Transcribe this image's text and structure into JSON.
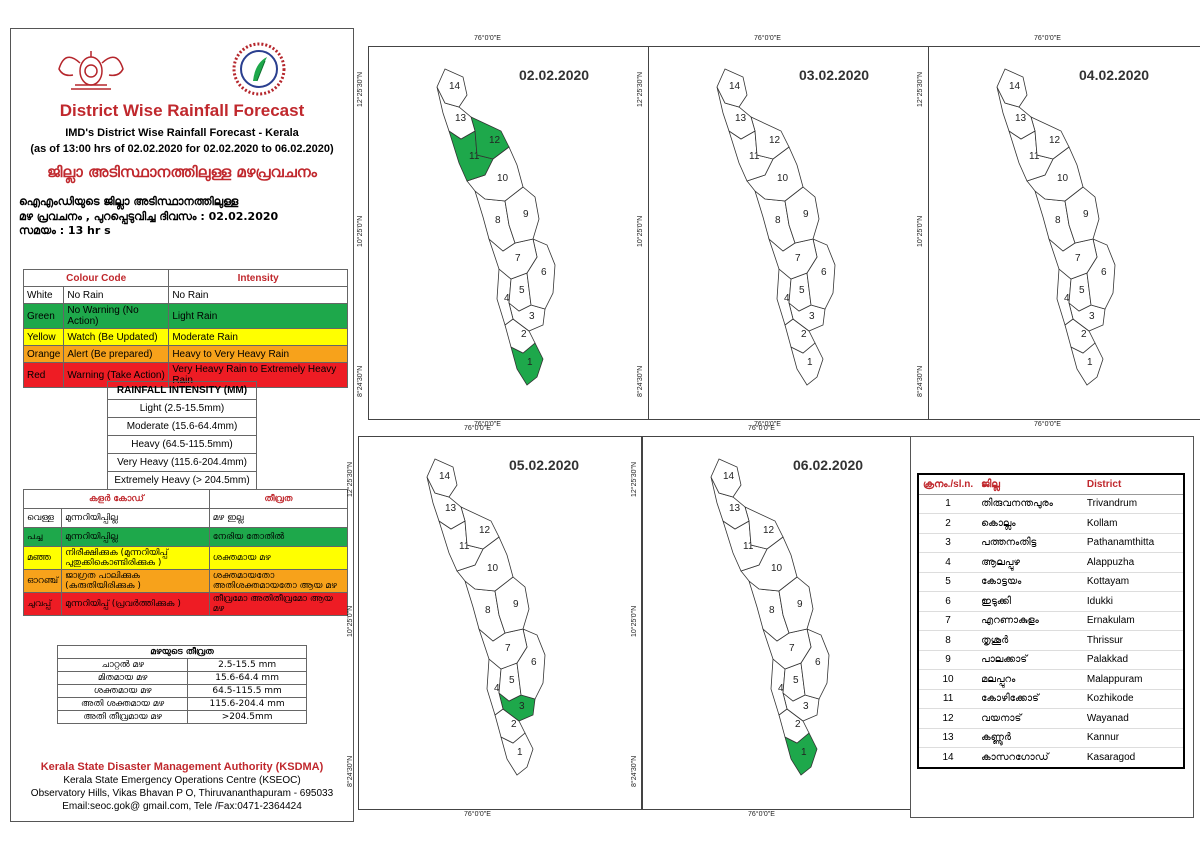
{
  "header": {
    "title": "District Wise Rainfall Forecast",
    "subtitle1": "IMD's District Wise Rainfall Forecast - Kerala",
    "subtitle2": "(as of 13:00 hrs of 02.02.2020  for 02.02.2020  to 06.02.2020)",
    "mal_title": "ജില്ലാ അടിസ്ഥാനത്തിലുള്ള മഴപ്രവചനം",
    "issue_line1": "ഐഎംഡിയുടെ ജില്ലാ    അടിസ്ഥാനത്തിലുള്ള",
    "issue_line2": "മഴ പ്രവചനം  , പുറപ്പെടുവിച്ച       ദിവസം : 02.02.2020",
    "issue_line3": "സമയം : 13  hr s"
  },
  "colour_code_table": {
    "header_code": "Colour Code",
    "header_intensity": "Intensity",
    "rows": [
      {
        "colour": "White",
        "code": "No Rain",
        "intensity": "No Rain",
        "bg": "#ffffff"
      },
      {
        "colour": "Green",
        "code": "No Warning (No Action)",
        "intensity": "Light Rain",
        "bg": "#1ea84b"
      },
      {
        "colour": "Yellow",
        "code": "Watch (Be Updated)",
        "intensity": "Moderate Rain",
        "bg": "#ffff00"
      },
      {
        "colour": "Orange",
        "code": "Alert (Be prepared)",
        "intensity": "Heavy to Very Heavy Rain",
        "bg": "#f7a21b"
      },
      {
        "colour": "Red",
        "code": "Warning (Take Action)",
        "intensity": "Very Heavy Rain to Extremely Heavy Rain",
        "bg": "#ee1c24"
      }
    ]
  },
  "intensity_table": {
    "header": "RAINFALL INTENSITY (MM)",
    "rows": [
      "Light (2.5-15.5mm)",
      "Moderate (15.6-64.4mm)",
      "Heavy (64.5-115.5mm)",
      "Very Heavy (115.6-204.4mm)",
      "Extremely Heavy (> 204.5mm)"
    ]
  },
  "mal_colour_table": {
    "header_code": "കളർ കോഡ്",
    "header_intensity": "തീവ്രത",
    "rows": [
      {
        "colour": "വെള്ള",
        "code": "മുന്നറിയിപ്പില്ല",
        "intensity": "മഴ ഇല്ല",
        "bg": "#ffffff"
      },
      {
        "colour": "പച്ച",
        "code": "മുന്നറിയിപ്പില്ല",
        "intensity": "നേരിയ തോതിൽ",
        "bg": "#1ea84b"
      },
      {
        "colour": "മഞ്ഞ",
        "code": "നിരീക്ഷിക്കുക (മുന്നറിയിപ്പ് പുതുക്കികൊണ്ടിരിക്കുക )",
        "intensity": "ശക്തമായ മഴ",
        "bg": "#ffff00"
      },
      {
        "colour": "ഓറഞ്ച്",
        "code": "ജാഗ്രത പാലിക്കുക (കരുതിയിരിക്കുക )",
        "intensity": "ശക്തമായതോ അതിശക്തമായതോ ആയ മഴ",
        "bg": "#f7a21b"
      },
      {
        "colour": "ചുവപ്പ്",
        "code": "മുന്നറിയിപ്പ് (പ്രവർത്തിക്കുക )",
        "intensity": "തീവ്രമോ അതിതീവ്രമോ ആയ മഴ",
        "bg": "#ee1c24"
      }
    ]
  },
  "mal_rain_table": {
    "header": "മഴയുടെ തീവ്രത",
    "rows": [
      {
        "label": "ചാറ്റൽ മഴ",
        "range": "2.5-15.5 mm"
      },
      {
        "label": "മിതമായ മഴ",
        "range": "15.6-64.4 mm"
      },
      {
        "label": "ശക്തമായ മഴ",
        "range": "64.5-115.5 mm"
      },
      {
        "label": "അതി ശക്തമായ മഴ",
        "range": "115.6-204.4 mm"
      },
      {
        "label": "അതി തീവ്രമായ മഴ",
        "range": ">204.5mm"
      }
    ]
  },
  "footer": {
    "org": "Kerala State Disaster Management Authority (KSDMA)",
    "line1": "Kerala State Emergency Operations Centre (KSEOC)",
    "line2": "Observatory Hills, Vikas Bhavan P O, Thiruvananthapuram - 695033",
    "line3": "Email:seoc.gok@ gmail.com, Tele /Fax:0471-2364424"
  },
  "axis": {
    "lon": "76°0'0\"E",
    "lat_top": "12°25'30\"N",
    "lat_mid": "10°25'0\"N",
    "lat_bot": "8°24'30\"N"
  },
  "map_colors": {
    "green": "#1ea84b",
    "white": "#ffffff"
  },
  "maps": [
    {
      "date": "02.02.2020",
      "green_districts": [
        1,
        11,
        12
      ]
    },
    {
      "date": "03.02.2020",
      "green_districts": []
    },
    {
      "date": "04.02.2020",
      "green_districts": []
    },
    {
      "date": "05.02.2020",
      "green_districts": [
        3
      ]
    },
    {
      "date": "06.02.2020",
      "green_districts": [
        1
      ]
    }
  ],
  "district_table": {
    "header_no": "ക്രനം./sl.n.",
    "header_mal": "ജില്ല",
    "header_en": "District",
    "rows": [
      {
        "no": "1",
        "mal": "തിരുവനന്തപുരം",
        "en": "Trivandrum"
      },
      {
        "no": "2",
        "mal": "കൊല്ലം",
        "en": "Kollam"
      },
      {
        "no": "3",
        "mal": "പത്തനംതിട്ട",
        "en": "Pathanamthitta"
      },
      {
        "no": "4",
        "mal": "ആലപ്പുഴ",
        "en": "Alappuzha"
      },
      {
        "no": "5",
        "mal": "കോട്ടയം",
        "en": "Kottayam"
      },
      {
        "no": "6",
        "mal": "ഇടുക്കി",
        "en": "Idukki"
      },
      {
        "no": "7",
        "mal": "എറണാകുളം",
        "en": "Ernakulam"
      },
      {
        "no": "8",
        "mal": "തൃശൂർ",
        "en": "Thrissur"
      },
      {
        "no": "9",
        "mal": "പാലക്കാട്",
        "en": "Palakkad"
      },
      {
        "no": "10",
        "mal": "മലപ്പുറം",
        "en": "Malappuram"
      },
      {
        "no": "11",
        "mal": "കോഴിക്കോട്",
        "en": "Kozhikode"
      },
      {
        "no": "12",
        "mal": "വയനാട്",
        "en": "Wayanad"
      },
      {
        "no": "13",
        "mal": "കണ്ണൂർ",
        "en": "Kannur"
      },
      {
        "no": "14",
        "mal": "കാസറഗോഡ്",
        "en": "Kasaragod"
      }
    ]
  }
}
